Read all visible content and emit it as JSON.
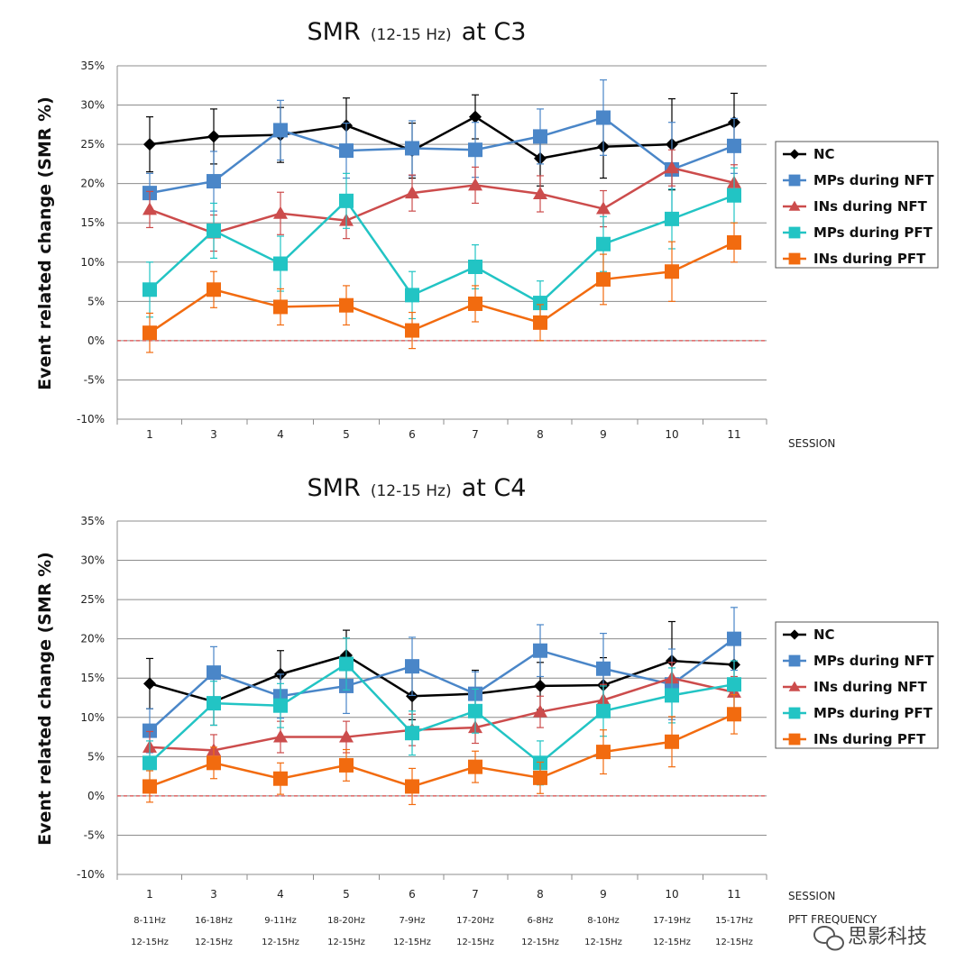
{
  "chart_data": [
    {
      "type": "line",
      "title": "SMR",
      "title_sub": "(12-15  Hz)",
      "title_site": "at C3",
      "ylabel": "Event related change (SMR %)",
      "xlabel": "SESSION",
      "ylim": [
        -10,
        35
      ],
      "yticks": [
        "-10%",
        "-5%",
        "0%",
        "5%",
        "10%",
        "15%",
        "20%",
        "25%",
        "30%",
        "35%"
      ],
      "categories": [
        "1",
        "3",
        "4",
        "5",
        "6",
        "7",
        "8",
        "9",
        "10",
        "11"
      ],
      "grid": true,
      "legend_position": "right",
      "zero_line_color": "#e06666",
      "series": [
        {
          "name": "NC",
          "color": "#000000",
          "marker": "diamond",
          "values": [
            25,
            26,
            26.2,
            27.4,
            24.2,
            28.5,
            23.2,
            24.7,
            25,
            27.8
          ],
          "errors": [
            3.5,
            3.5,
            3.5,
            3.5,
            3.5,
            2.8,
            3.5,
            4,
            5.8,
            3.7
          ]
        },
        {
          "name": "MPs during NFT",
          "color": "#4a86c8",
          "marker": "square",
          "values": [
            18.8,
            20.3,
            26.8,
            24.2,
            24.5,
            24.3,
            26,
            28.4,
            21.8,
            24.8
          ],
          "errors": [
            2.5,
            3.8,
            3.8,
            3.5,
            3.5,
            3.5,
            3.5,
            4.8,
            6,
            3.5
          ]
        },
        {
          "name": "INs during NFT",
          "color": "#cc4c4c",
          "marker": "triangle",
          "values": [
            16.7,
            13.7,
            16.2,
            15.3,
            18.8,
            19.8,
            18.7,
            16.8,
            22,
            20.1
          ],
          "errors": [
            2.3,
            2.3,
            2.7,
            2.3,
            2.3,
            2.3,
            2.3,
            2.3,
            2.3,
            2.3
          ]
        },
        {
          "name": "MPs during PFT",
          "color": "#22c4c4",
          "marker": "square",
          "values": [
            6.5,
            14,
            9.8,
            17.8,
            5.8,
            9.4,
            4.8,
            12.3,
            15.5,
            18.5
          ],
          "errors": [
            3.5,
            3.5,
            3.5,
            3.5,
            3,
            2.8,
            2.8,
            3.5,
            3.8,
            3.5
          ]
        },
        {
          "name": "INs during PFT",
          "color": "#f26b0f",
          "marker": "square",
          "values": [
            1,
            6.5,
            4.3,
            4.5,
            1.3,
            4.7,
            2.3,
            7.8,
            8.8,
            12.5
          ],
          "errors": [
            2.5,
            2.3,
            2.3,
            2.5,
            2.3,
            2.3,
            2.3,
            3.2,
            3.8,
            2.5
          ]
        }
      ]
    },
    {
      "type": "line",
      "title": "SMR",
      "title_sub": "(12-15  Hz)",
      "title_site": "at C4",
      "ylabel": "Event related change (SMR %)",
      "xlabel": "SESSION",
      "ylim": [
        -10,
        35
      ],
      "yticks": [
        "-10%",
        "-5%",
        "0%",
        "5%",
        "10%",
        "15%",
        "20%",
        "25%",
        "30%",
        "35%"
      ],
      "categories": [
        "1",
        "3",
        "4",
        "5",
        "6",
        "7",
        "8",
        "9",
        "10",
        "11"
      ],
      "pft_frequency_label": "PFT FREQUENCY",
      "pft_frequency": [
        "8-11Hz",
        "16-18Hz",
        "9-11Hz",
        "18-20Hz",
        "7-9Hz",
        "17-20Hz",
        "6-8Hz",
        "8-10Hz",
        "17-19Hz",
        "15-17Hz"
      ],
      "nft_frequency": [
        "12-15Hz",
        "12-15Hz",
        "12-15Hz",
        "12-15Hz",
        "12-15Hz",
        "12-15Hz",
        "12-15Hz",
        "12-15Hz",
        "12-15Hz",
        "12-15Hz"
      ],
      "grid": true,
      "legend_position": "right",
      "zero_line_color": "#e06666",
      "series": [
        {
          "name": "NC",
          "color": "#000000",
          "marker": "diamond",
          "values": [
            14.3,
            12,
            15.5,
            17.9,
            12.7,
            13,
            14,
            14.1,
            17.2,
            16.7
          ],
          "errors": [
            3.2,
            3,
            3,
            3.2,
            3,
            3,
            3,
            3.5,
            5,
            3.5
          ]
        },
        {
          "name": "MPs during NFT",
          "color": "#4a86c8",
          "marker": "square",
          "values": [
            8.3,
            15.7,
            12.7,
            14,
            16.5,
            13,
            18.5,
            16.2,
            14.2,
            20
          ],
          "errors": [
            2.8,
            3.3,
            2.8,
            3.5,
            3.7,
            2.8,
            3.3,
            4.5,
            4.5,
            4
          ]
        },
        {
          "name": "INs during NFT",
          "color": "#cc4c4c",
          "marker": "triangle",
          "values": [
            6.2,
            5.8,
            7.5,
            7.5,
            8.4,
            8.7,
            10.7,
            12.2,
            15,
            13.2
          ],
          "errors": [
            2,
            2,
            2,
            2,
            2,
            2,
            2,
            2,
            2,
            2
          ]
        },
        {
          "name": "MPs during PFT",
          "color": "#22c4c4",
          "marker": "square",
          "values": [
            4.2,
            11.8,
            11.5,
            16.8,
            8,
            10.8,
            4.2,
            10.8,
            12.8,
            14.2
          ],
          "errors": [
            2.8,
            2.8,
            2.8,
            3.3,
            2.8,
            2.8,
            2.8,
            3.2,
            3.5,
            3
          ]
        },
        {
          "name": "INs during PFT",
          "color": "#f26b0f",
          "marker": "square",
          "values": [
            1.2,
            4.2,
            2.2,
            3.9,
            1.2,
            3.7,
            2.3,
            5.6,
            6.9,
            10.4
          ],
          "errors": [
            2,
            2,
            2,
            2,
            2.3,
            2,
            2,
            2.8,
            3.2,
            2.5
          ]
        }
      ]
    }
  ],
  "watermark": {
    "text": "思影科技",
    "icon": "wechat-icon"
  }
}
